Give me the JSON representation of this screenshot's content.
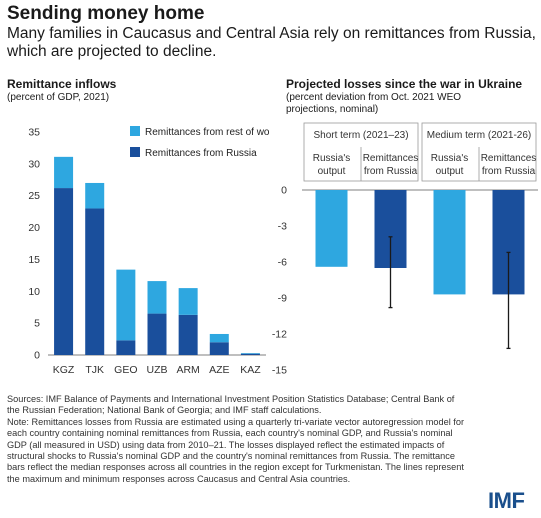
{
  "header": {
    "title": "Sending money home",
    "subtitle": "Many families in Caucasus and Central Asia rely on remittances from Russia, which are projected to decline."
  },
  "colors": {
    "russia": "#1a4f9c",
    "rest": "#2ea7e0",
    "error_bar": "#1a1a1a",
    "grid": "#cccccc"
  },
  "chart_data": [
    {
      "type": "bar",
      "stacked": true,
      "title": "Remittance inflows",
      "subtitle": "(percent of GDP, 2021)",
      "categories": [
        "KGZ",
        "TJK",
        "GEO",
        "UZB",
        "ARM",
        "AZE",
        "KAZ"
      ],
      "series": [
        {
          "name": "Remittances from Russia",
          "values": [
            26.2,
            23.0,
            2.3,
            6.5,
            6.3,
            2.0,
            0.2
          ]
        },
        {
          "name": "Remittances from rest of world",
          "values": [
            4.9,
            4.0,
            11.1,
            5.1,
            4.2,
            1.3,
            0.1
          ]
        }
      ],
      "yticks": [
        0,
        5,
        10,
        15,
        20,
        25,
        30,
        35
      ],
      "ylim": [
        0,
        35
      ],
      "legend": "top-right"
    },
    {
      "type": "bar",
      "title": "Projected losses since the war in Ukraine",
      "subtitle_lines": [
        "(percent deviation from Oct. 2021 WEO",
        "projections, nominal)"
      ],
      "groups": [
        {
          "label": "Short term (2021–23)",
          "bars": [
            {
              "label_lines": [
                "Russia's",
                "output"
              ],
              "value": -6.4,
              "series": "output"
            },
            {
              "label_lines": [
                "Remittances",
                "from Russia"
              ],
              "value": -6.5,
              "min": -9.8,
              "max": -3.9,
              "series": "remittances"
            }
          ]
        },
        {
          "label": "Medium term (2021-26)",
          "bars": [
            {
              "label_lines": [
                "Russia's",
                "output"
              ],
              "value": -8.7,
              "series": "output"
            },
            {
              "label_lines": [
                "Remittances",
                "from Russia"
              ],
              "value": -8.7,
              "min": -13.2,
              "max": -5.2,
              "series": "remittances"
            }
          ]
        }
      ],
      "yticks": [
        0,
        -3,
        -6,
        -9,
        -12,
        -15
      ],
      "ylim": [
        -15,
        0
      ]
    }
  ],
  "sources": [
    "Sources: IMF Balance of Payments and International Investment Position Statistics Database; Central Bank of the Russian Federation; National Bank of Georgia; and IMF staff calculations.",
    "Note: Remittances losses from Russia are estimated using a quarterly tri-variate vector autoregression model for each country containing nominal remittances from Russia, each country's nominal GDP, and Russia's nominal GDP (all measured in USD) using data from 2010–21. The losses displayed reflect the estimated impacts of structural shocks to Russia's nominal GDP and the country's nominal remittances from Russia. The remittance bars reflect the median responses across all countries in the region except for Turkmenistan. The lines represent the maximum and minimum responses across Caucasus and Central Asia countries."
  ],
  "logo": "IMF"
}
